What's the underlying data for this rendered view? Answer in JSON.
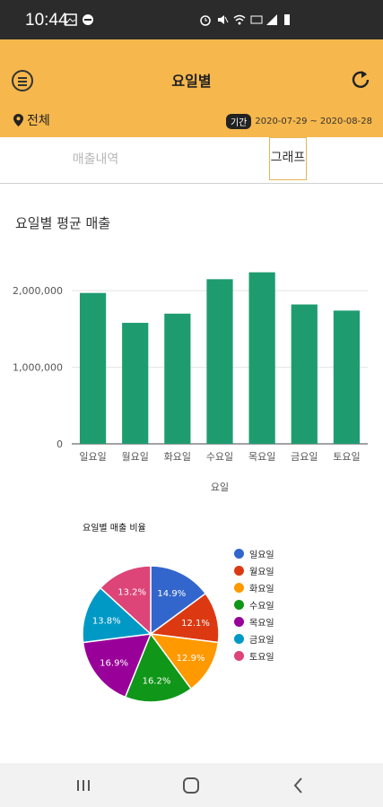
{
  "status": {
    "time": "10:44"
  },
  "header": {
    "title": "요일별",
    "location": "전체",
    "period_badge": "기간",
    "period_start": "2020-07-29",
    "period_sep": "~",
    "period_end": "2020-08-28",
    "bg_color": "#f6b74c"
  },
  "tabs": [
    {
      "label": "매출내역",
      "active": false
    },
    {
      "label": "그래프",
      "active": true
    }
  ],
  "section_title": "요일별 평균 매출",
  "chart_data": [
    {
      "type": "bar",
      "title": "",
      "categories": [
        "일요일",
        "월요일",
        "화요일",
        "수요일",
        "목요일",
        "금요일",
        "토요일"
      ],
      "values": [
        1970000,
        1580000,
        1700000,
        2150000,
        2240000,
        1820000,
        1740000
      ],
      "xlabel": "요일",
      "ylabel": "",
      "ylim": [
        0,
        2400000
      ],
      "yticks": [
        0,
        1000000,
        2000000
      ],
      "ytick_labels": [
        "0",
        "1,000,000",
        "2,000,000"
      ],
      "color": "#1e9c70",
      "grid": true
    },
    {
      "type": "pie",
      "title": "요일별 매출 비율",
      "labels": [
        "일요일",
        "월요일",
        "화요일",
        "수요일",
        "목요일",
        "금요일",
        "토요일"
      ],
      "values": [
        14.9,
        12.1,
        12.9,
        16.2,
        16.9,
        13.8,
        13.2
      ],
      "value_labels": [
        "14.9%",
        "12.1%",
        "12.9%",
        "16.2%",
        "16.9%",
        "13.8%",
        "13.2%"
      ],
      "colors": [
        "#3366cc",
        "#dc3912",
        "#ff9900",
        "#109618",
        "#990099",
        "#0099c6",
        "#dd4477"
      ],
      "legend": "right"
    }
  ]
}
